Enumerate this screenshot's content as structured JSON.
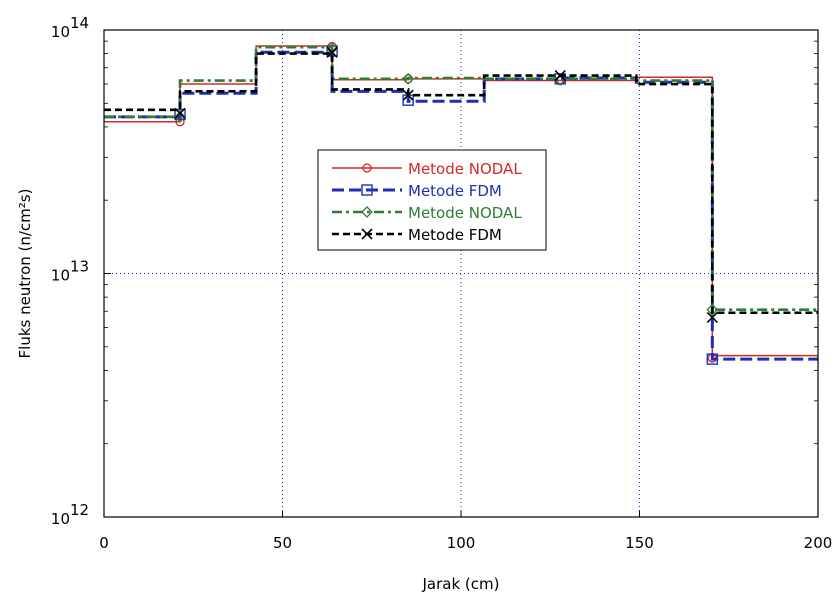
{
  "chart_data": {
    "type": "line",
    "xlabel": "Jarak (cm)",
    "ylabel": "Fluks neutron (n/cm²s)",
    "xlim": [
      0,
      200
    ],
    "ylim": [
      1000000000000.0,
      100000000000000.0
    ],
    "yscale": "log",
    "grid": true,
    "legend_position": "center",
    "x_ticks": [
      0,
      50,
      100,
      150,
      200
    ],
    "y_ticks": [
      {
        "value": 1000000000000.0,
        "base": "10",
        "exp": "12"
      },
      {
        "value": 10000000000000.0,
        "base": "10",
        "exp": "13"
      },
      {
        "value": 100000000000000.0,
        "base": "10",
        "exp": "14"
      }
    ],
    "series": [
      {
        "name": "Metode NODAL",
        "color": "#d62728",
        "dash": "",
        "marker": "circle",
        "marker_x": [
          21.3,
          63.9,
          85.2,
          127.8,
          170.4
        ],
        "marker_y": [
          42000000000000.0,
          85500000000000.0,
          63000000000000.0,
          62000000000000.0,
          4500000000000.0
        ],
        "x": [
          0,
          21.3,
          21.3,
          42.6,
          42.6,
          63.9,
          63.9,
          85.2,
          85.2,
          106.5,
          106.5,
          127.8,
          127.8,
          149.1,
          149.1,
          170.4,
          170.4,
          200
        ],
        "y": [
          42000000000000.0,
          42000000000000.0,
          60000000000000.0,
          60000000000000.0,
          86000000000000.0,
          86000000000000.0,
          62500000000000.0,
          62500000000000.0,
          63000000000000.0,
          63000000000000.0,
          62000000000000.0,
          62000000000000.0,
          62000000000000.0,
          62000000000000.0,
          64000000000000.0,
          64000000000000.0,
          4600000000000.0,
          4600000000000.0
        ]
      },
      {
        "name": "Metode FDM",
        "color": "#1f2fb4",
        "dash": "12,5",
        "marker": "square",
        "marker_x": [
          21.3,
          63.9,
          85.2,
          127.8,
          170.4
        ],
        "marker_y": [
          45000000000000.0,
          82000000000000.0,
          51500000000000.0,
          63000000000000.0,
          4450000000000.0
        ],
        "x": [
          0,
          21.3,
          21.3,
          42.6,
          42.6,
          63.9,
          63.9,
          85.2,
          85.2,
          106.5,
          106.5,
          127.8,
          127.8,
          149.1,
          149.1,
          170.4,
          170.4,
          200
        ],
        "y": [
          44000000000000.0,
          44000000000000.0,
          55000000000000.0,
          55000000000000.0,
          81000000000000.0,
          81000000000000.0,
          56000000000000.0,
          56000000000000.0,
          51000000000000.0,
          51000000000000.0,
          63000000000000.0,
          63000000000000.0,
          63500000000000.0,
          63500000000000.0,
          61000000000000.0,
          61000000000000.0,
          4450000000000.0,
          4450000000000.0
        ]
      },
      {
        "name": "Metode NODAL",
        "color": "#2e7d32",
        "dash": "10,4,3,4",
        "marker": "diamond",
        "marker_x": [
          21.3,
          63.9,
          85.2,
          127.8,
          170.4
        ],
        "marker_y": [
          44000000000000.0,
          84000000000000.0,
          63000000000000.0,
          62500000000000.0,
          7100000000000.0
        ],
        "x": [
          0,
          21.3,
          21.3,
          42.6,
          42.6,
          63.9,
          63.9,
          85.2,
          85.2,
          106.5,
          106.5,
          127.8,
          127.8,
          149.1,
          149.1,
          170.4,
          170.4,
          200
        ],
        "y": [
          44000000000000.0,
          44000000000000.0,
          62000000000000.0,
          62000000000000.0,
          85000000000000.0,
          85000000000000.0,
          63000000000000.0,
          63000000000000.0,
          63500000000000.0,
          63500000000000.0,
          63000000000000.0,
          63000000000000.0,
          63000000000000.0,
          63000000000000.0,
          62000000000000.0,
          62000000000000.0,
          7100000000000.0,
          7100000000000.0
        ]
      },
      {
        "name": "Metode FDM",
        "color": "#000000",
        "dash": "7,4",
        "marker": "cross",
        "marker_x": [
          21.3,
          63.9,
          85.2,
          127.8,
          170.4
        ],
        "marker_y": [
          45500000000000.0,
          81000000000000.0,
          54000000000000.0,
          65000000000000.0,
          6600000000000.0
        ],
        "x": [
          0,
          21.3,
          21.3,
          42.6,
          42.6,
          63.9,
          63.9,
          85.2,
          85.2,
          106.5,
          106.5,
          127.8,
          127.8,
          149.1,
          149.1,
          170.4,
          170.4,
          200
        ],
        "y": [
          47000000000000.0,
          47000000000000.0,
          56000000000000.0,
          56000000000000.0,
          80000000000000.0,
          80000000000000.0,
          57000000000000.0,
          57000000000000.0,
          54000000000000.0,
          54000000000000.0,
          65000000000000.0,
          65000000000000.0,
          65000000000000.0,
          65000000000000.0,
          60000000000000.0,
          60000000000000.0,
          6900000000000.0,
          6900000000000.0
        ]
      }
    ]
  }
}
